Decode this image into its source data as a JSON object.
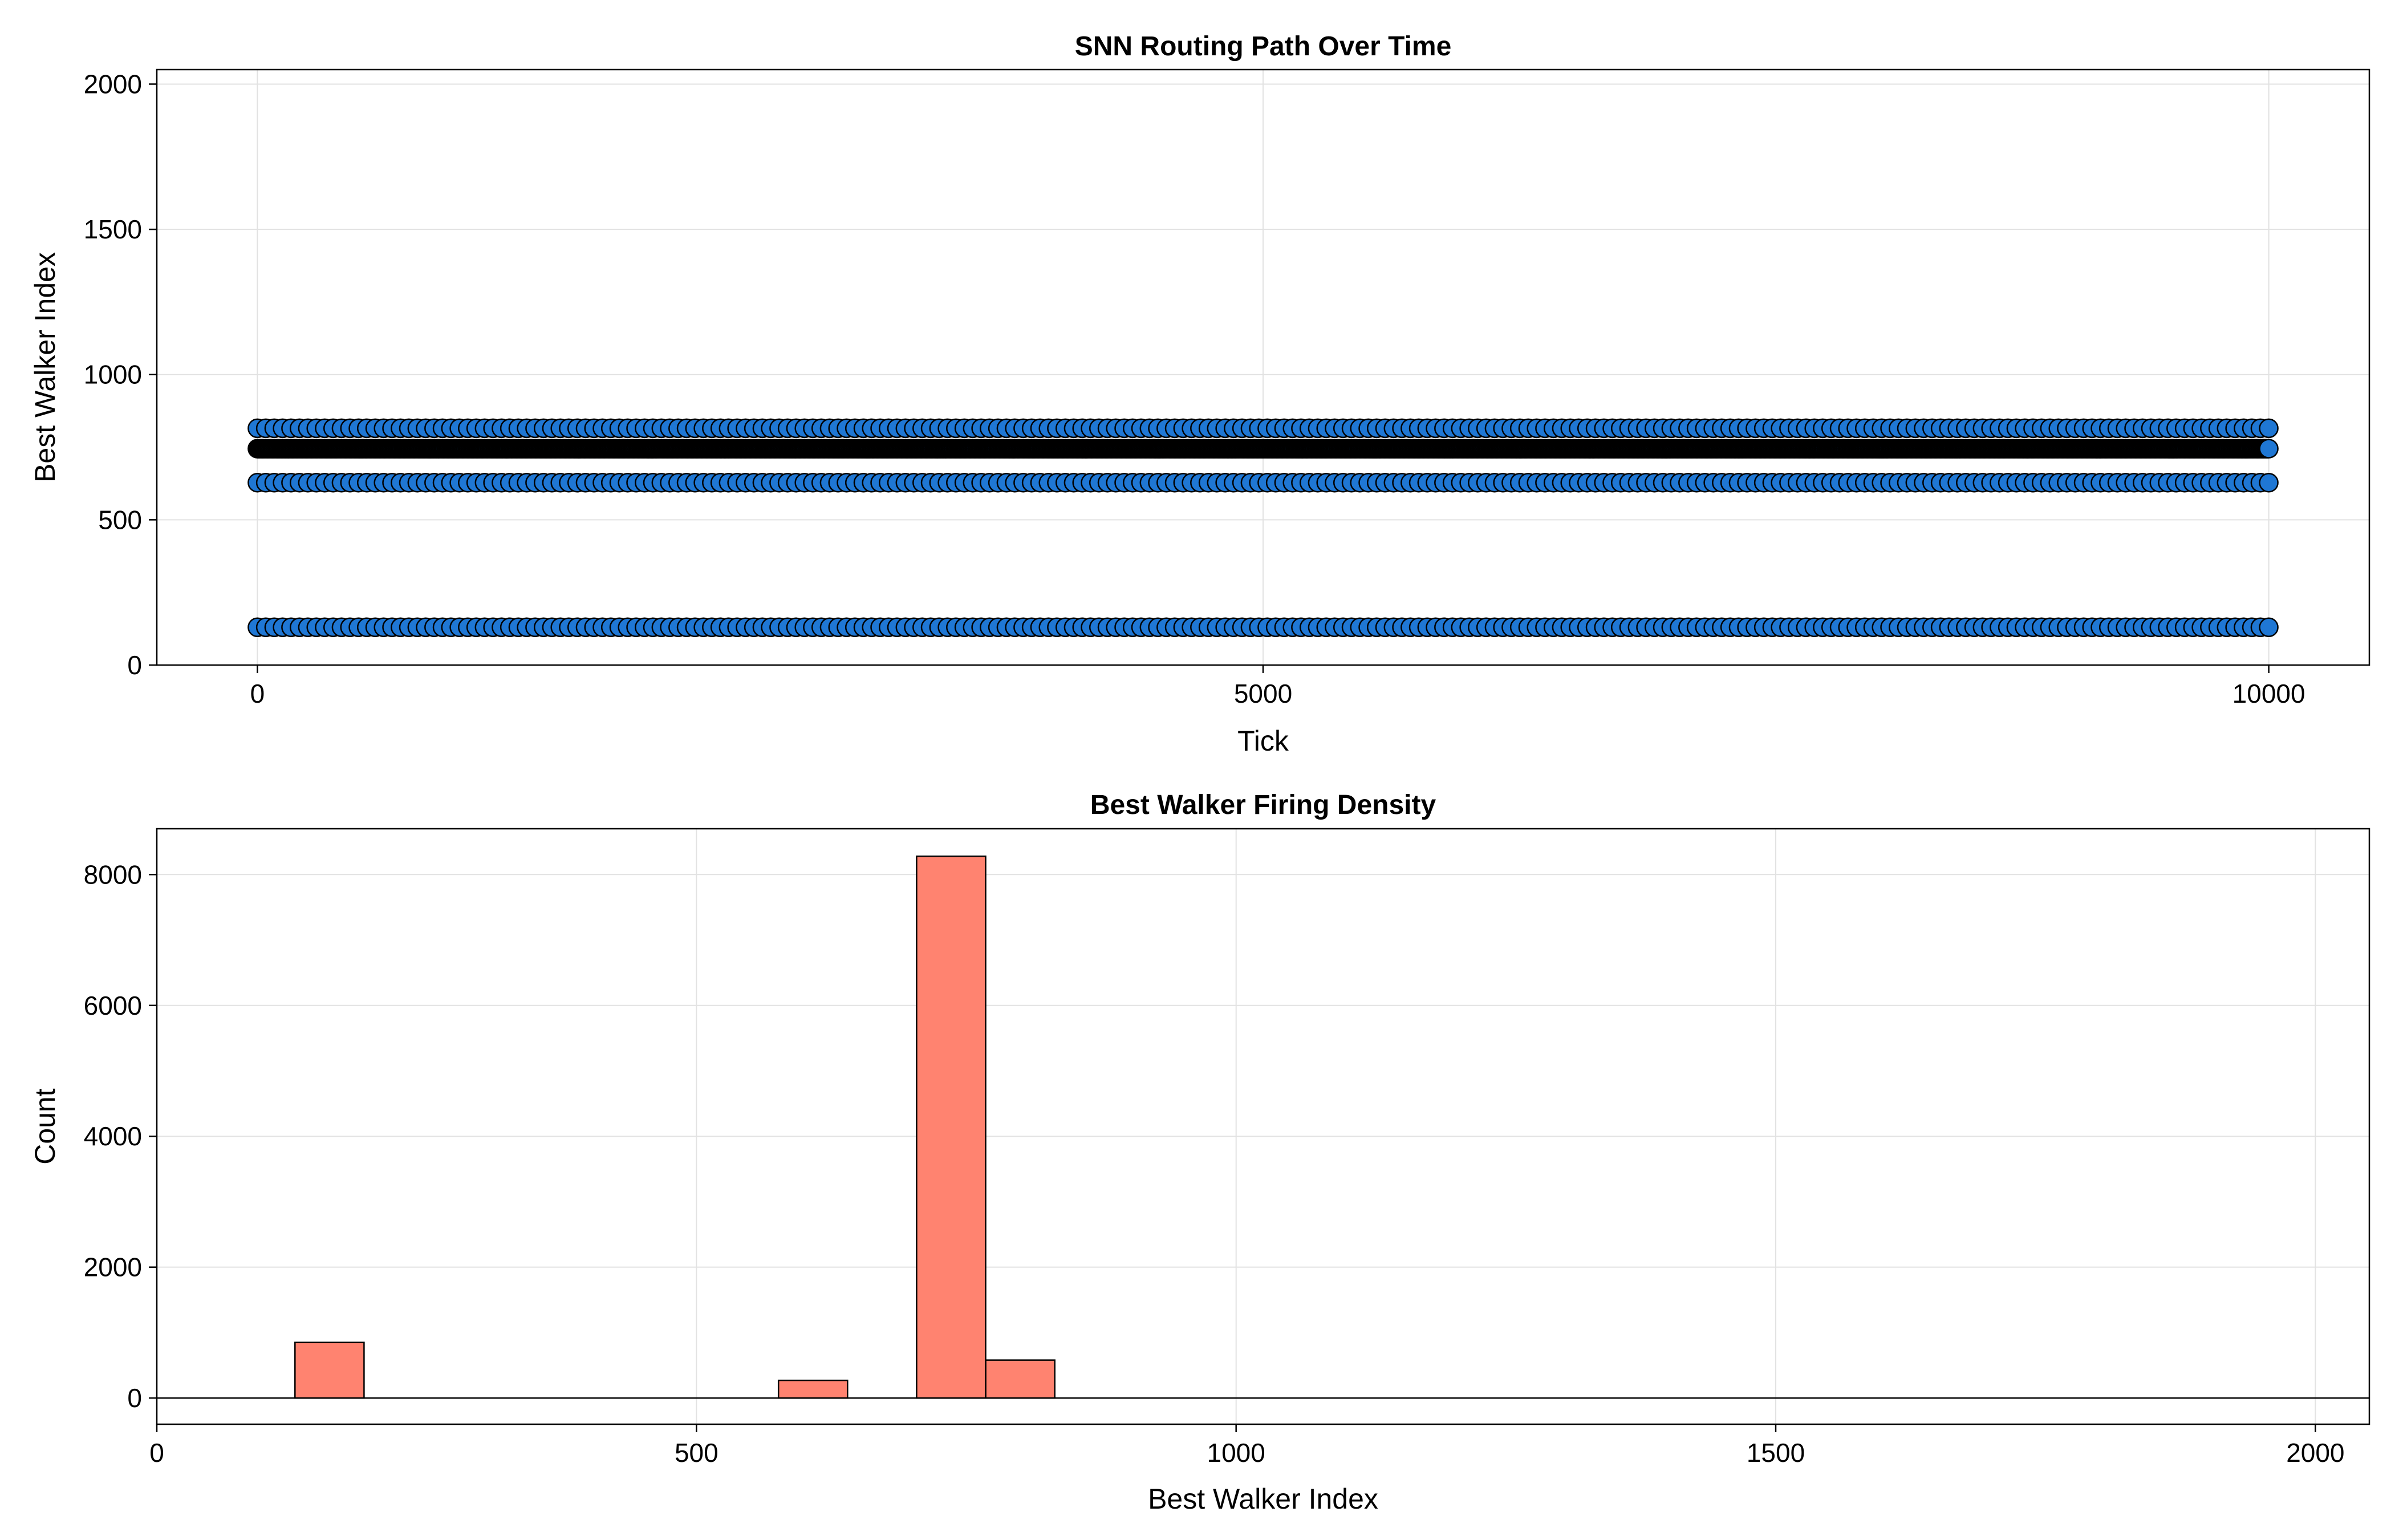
{
  "chart_data": [
    {
      "type": "scatter",
      "title": "SNN Routing Path Over Time",
      "xlabel": "Tick",
      "ylabel": "Best Walker Index",
      "xlim": [
        -500,
        10500
      ],
      "ylim": [
        0,
        2050
      ],
      "xticks": [
        0,
        5000,
        10000
      ],
      "yticks": [
        0,
        500,
        1000,
        1500,
        2000
      ],
      "grid": true,
      "marker_color": "#1f77d4",
      "marker_edge": "#000000",
      "series": [
        {
          "x_start": 0,
          "x_end": 10000,
          "n": 1600,
          "y": 745
        },
        {
          "x_start": 0,
          "x_end": 10000,
          "n": 240,
          "y": 815
        },
        {
          "x_start": 0,
          "x_end": 10000,
          "n": 240,
          "y": 628
        },
        {
          "x_start": 0,
          "x_end": 10000,
          "n": 240,
          "y": 130
        }
      ]
    },
    {
      "type": "bar",
      "title": "Best Walker Firing Density",
      "xlabel": "Best Walker Index",
      "ylabel": "Count",
      "xlim": [
        0,
        2050
      ],
      "ylim": [
        -400,
        8700
      ],
      "xticks": [
        0,
        500,
        1000,
        1500,
        2000
      ],
      "yticks": [
        0,
        2000,
        4000,
        6000,
        8000
      ],
      "grid": true,
      "bar_color": "#ff8370",
      "bar_edge": "#000000",
      "bins": [
        {
          "x0": 128,
          "x1": 192,
          "value": 850
        },
        {
          "x0": 576,
          "x1": 640,
          "value": 270
        },
        {
          "x0": 704,
          "x1": 768,
          "value": 8280
        },
        {
          "x0": 768,
          "x1": 832,
          "value": 580
        }
      ]
    }
  ]
}
